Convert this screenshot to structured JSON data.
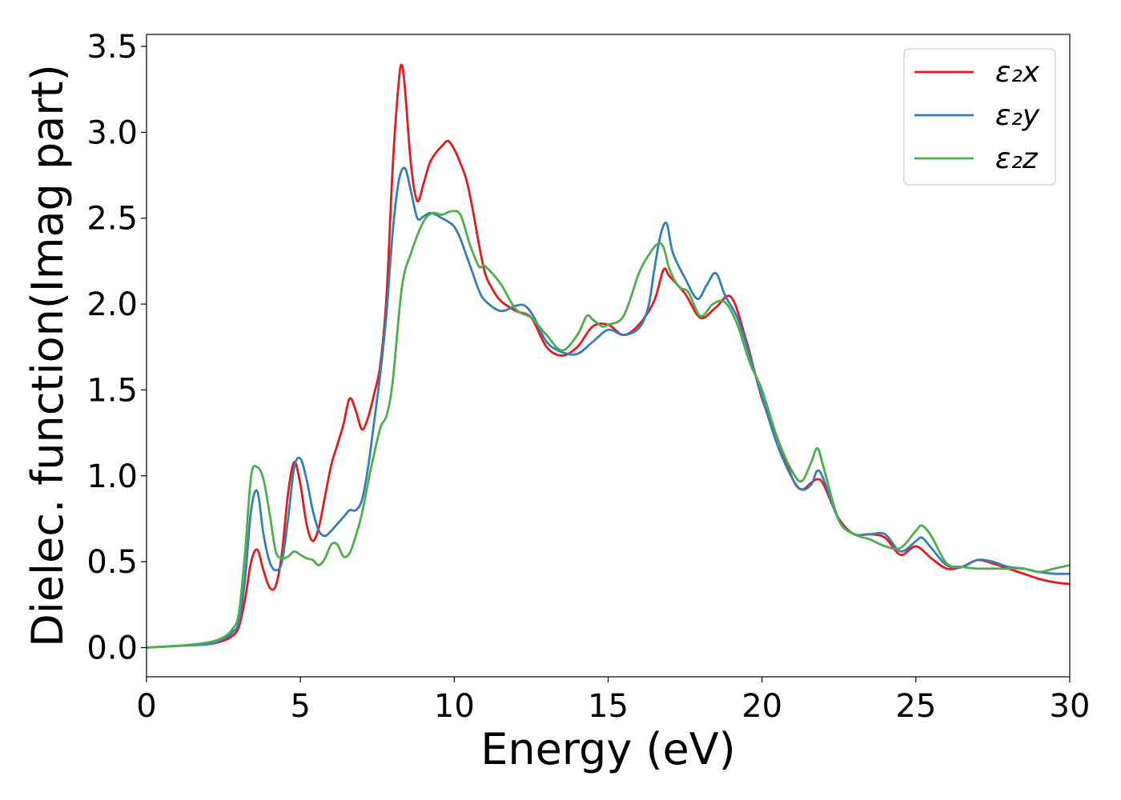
{
  "chart_data": {
    "type": "line",
    "xlabel": "Energy (eV)",
    "ylabel": "Dielec. function(Imag part)",
    "xlim": [
      0,
      30
    ],
    "ylim": [
      -0.17,
      3.57
    ],
    "xticks": [
      0,
      5,
      10,
      15,
      20,
      25,
      30
    ],
    "yticks": [
      0.0,
      0.5,
      1.0,
      1.5,
      2.0,
      2.5,
      3.0,
      3.5
    ],
    "xtick_labels": [
      "0",
      "5",
      "10",
      "15",
      "20",
      "25",
      "30"
    ],
    "ytick_labels": [
      "0.0",
      "0.5",
      "1.0",
      "1.5",
      "2.0",
      "2.5",
      "3.0",
      "3.5"
    ],
    "grid": false,
    "legend_position": "top-right",
    "series": [
      {
        "name": "ε₂x",
        "color": "#e41a1c",
        "x": [
          0,
          1,
          2,
          2.5,
          2.8,
          3.0,
          3.2,
          3.4,
          3.6,
          3.8,
          4.0,
          4.2,
          4.4,
          4.6,
          4.8,
          5.0,
          5.2,
          5.4,
          5.6,
          5.8,
          6.0,
          6.2,
          6.4,
          6.6,
          6.8,
          7.0,
          7.2,
          7.4,
          7.6,
          7.8,
          8.0,
          8.2,
          8.3,
          8.4,
          8.6,
          8.8,
          9.0,
          9.2,
          9.4,
          9.6,
          9.8,
          10.0,
          10.2,
          10.4,
          10.6,
          10.8,
          11.0,
          11.2,
          11.5,
          12.0,
          12.5,
          13.0,
          13.5,
          14.0,
          14.5,
          15.0,
          15.5,
          16.0,
          16.5,
          16.8,
          17.0,
          17.5,
          18.0,
          18.5,
          19.0,
          19.5,
          20.0,
          20.5,
          21.0,
          21.3,
          21.6,
          21.8,
          22.0,
          22.5,
          23.0,
          23.5,
          24.0,
          24.5,
          25.0,
          25.5,
          26.0,
          26.5,
          27.0,
          27.5,
          28.0,
          28.5,
          29.0,
          29.5,
          30.0
        ],
        "values": [
          0,
          0.01,
          0.02,
          0.04,
          0.07,
          0.12,
          0.28,
          0.5,
          0.57,
          0.45,
          0.35,
          0.36,
          0.55,
          0.9,
          1.08,
          0.95,
          0.72,
          0.62,
          0.7,
          0.88,
          1.06,
          1.18,
          1.3,
          1.45,
          1.38,
          1.27,
          1.34,
          1.48,
          1.65,
          2.05,
          2.8,
          3.3,
          3.39,
          3.25,
          2.8,
          2.6,
          2.7,
          2.82,
          2.88,
          2.92,
          2.95,
          2.9,
          2.82,
          2.72,
          2.55,
          2.35,
          2.18,
          2.1,
          2.02,
          1.96,
          1.92,
          1.75,
          1.7,
          1.75,
          1.87,
          1.88,
          1.82,
          1.88,
          2.02,
          2.2,
          2.16,
          2.06,
          1.92,
          1.98,
          2.04,
          1.78,
          1.45,
          1.22,
          0.98,
          0.92,
          0.96,
          0.98,
          0.95,
          0.75,
          0.66,
          0.66,
          0.64,
          0.54,
          0.59,
          0.52,
          0.46,
          0.47,
          0.51,
          0.49,
          0.46,
          0.43,
          0.4,
          0.38,
          0.37
        ]
      },
      {
        "name": "ε₂y",
        "color": "#377eb8",
        "x": [
          0,
          1,
          2,
          2.5,
          2.8,
          3.0,
          3.2,
          3.4,
          3.6,
          3.8,
          4.0,
          4.2,
          4.4,
          4.6,
          4.8,
          5.0,
          5.2,
          5.4,
          5.6,
          5.8,
          6.0,
          6.2,
          6.4,
          6.6,
          6.8,
          7.0,
          7.2,
          7.4,
          7.6,
          7.8,
          8.0,
          8.2,
          8.4,
          8.6,
          8.8,
          9.0,
          9.2,
          9.4,
          9.6,
          9.8,
          10.0,
          10.2,
          10.4,
          10.6,
          10.8,
          11.0,
          11.5,
          12.0,
          12.3,
          12.6,
          13.0,
          13.5,
          14.0,
          14.5,
          15.0,
          15.5,
          16.0,
          16.3,
          16.5,
          16.7,
          16.9,
          17.1,
          17.5,
          17.9,
          18.2,
          18.5,
          18.8,
          19.2,
          19.6,
          20.0,
          20.5,
          21.0,
          21.3,
          21.6,
          21.8,
          22.0,
          22.5,
          23.0,
          23.5,
          24.0,
          24.5,
          25.0,
          25.2,
          25.5,
          26.0,
          26.5,
          27.0,
          27.5,
          28.0,
          28.5,
          29.0,
          29.5,
          30.0
        ],
        "values": [
          0,
          0.01,
          0.02,
          0.05,
          0.09,
          0.15,
          0.4,
          0.8,
          0.91,
          0.66,
          0.5,
          0.45,
          0.5,
          0.75,
          1.05,
          1.1,
          0.98,
          0.8,
          0.68,
          0.65,
          0.68,
          0.72,
          0.76,
          0.8,
          0.8,
          0.86,
          1.05,
          1.32,
          1.6,
          1.95,
          2.42,
          2.72,
          2.79,
          2.65,
          2.5,
          2.51,
          2.53,
          2.52,
          2.5,
          2.48,
          2.45,
          2.38,
          2.28,
          2.18,
          2.08,
          2.02,
          1.96,
          1.99,
          1.99,
          1.92,
          1.78,
          1.72,
          1.71,
          1.78,
          1.85,
          1.82,
          1.86,
          1.98,
          2.2,
          2.4,
          2.47,
          2.3,
          2.15,
          2.03,
          2.11,
          2.18,
          2.05,
          1.92,
          1.7,
          1.46,
          1.18,
          0.98,
          0.92,
          0.95,
          1.03,
          0.98,
          0.74,
          0.66,
          0.66,
          0.66,
          0.56,
          0.62,
          0.64,
          0.58,
          0.48,
          0.47,
          0.51,
          0.5,
          0.47,
          0.46,
          0.44,
          0.43,
          0.43
        ]
      },
      {
        "name": "ε₂z",
        "color": "#4daf4a",
        "x": [
          0,
          1,
          2,
          2.5,
          2.8,
          3.0,
          3.2,
          3.4,
          3.6,
          3.8,
          4.0,
          4.2,
          4.4,
          4.6,
          4.8,
          5.0,
          5.2,
          5.4,
          5.6,
          5.8,
          6.0,
          6.2,
          6.4,
          6.6,
          6.8,
          7.0,
          7.3,
          7.6,
          7.8,
          8.0,
          8.3,
          8.6,
          9.0,
          9.3,
          9.6,
          9.9,
          10.2,
          10.5,
          10.8,
          11.0,
          11.5,
          12.0,
          12.5,
          13.0,
          13.5,
          14.0,
          14.3,
          14.5,
          14.8,
          15.0,
          15.5,
          16.0,
          16.3,
          16.6,
          16.8,
          17.0,
          17.3,
          17.6,
          18.0,
          18.4,
          18.8,
          19.2,
          19.6,
          20.0,
          20.5,
          21.0,
          21.3,
          21.6,
          21.8,
          22.0,
          22.5,
          23.0,
          23.5,
          24.0,
          24.5,
          25.0,
          25.2,
          25.5,
          26.0,
          26.5,
          27.0,
          27.5,
          28.0,
          28.5,
          29.0,
          29.5,
          30.0
        ],
        "values": [
          0,
          0.01,
          0.03,
          0.06,
          0.11,
          0.2,
          0.55,
          1.0,
          1.05,
          0.98,
          0.78,
          0.56,
          0.52,
          0.53,
          0.56,
          0.54,
          0.52,
          0.51,
          0.48,
          0.52,
          0.6,
          0.6,
          0.53,
          0.55,
          0.65,
          0.78,
          1.05,
          1.28,
          1.35,
          1.55,
          2.1,
          2.3,
          2.48,
          2.53,
          2.52,
          2.54,
          2.52,
          2.35,
          2.22,
          2.22,
          2.12,
          1.97,
          1.92,
          1.82,
          1.73,
          1.82,
          1.93,
          1.91,
          1.87,
          1.88,
          1.93,
          2.18,
          2.28,
          2.35,
          2.33,
          2.2,
          2.1,
          2.07,
          1.93,
          2.0,
          2.01,
          1.88,
          1.66,
          1.5,
          1.22,
          1.02,
          0.97,
          1.08,
          1.16,
          1.05,
          0.74,
          0.66,
          0.63,
          0.59,
          0.58,
          0.68,
          0.71,
          0.65,
          0.49,
          0.47,
          0.46,
          0.46,
          0.46,
          0.46,
          0.44,
          0.46,
          0.48
        ]
      }
    ]
  }
}
